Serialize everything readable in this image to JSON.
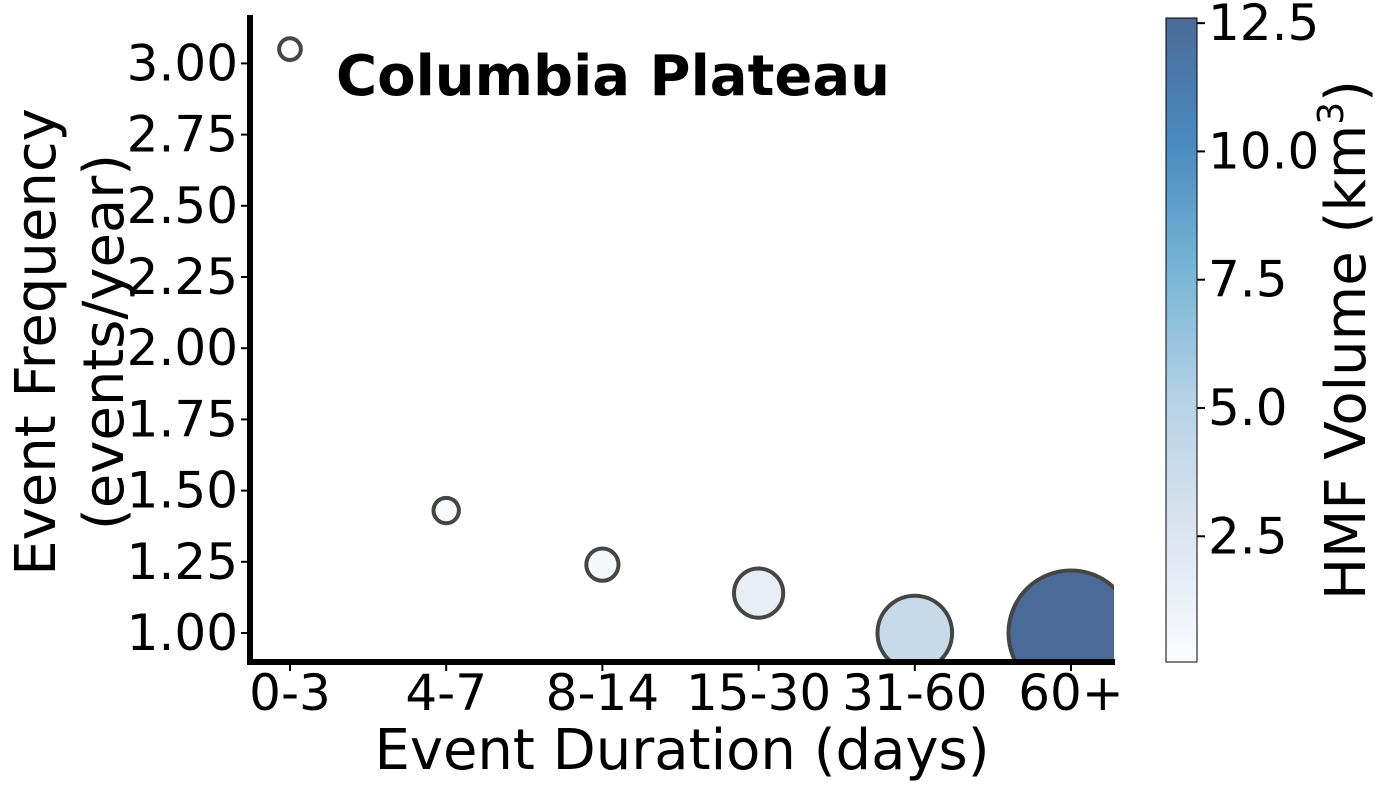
{
  "chart_data": {
    "type": "scatter",
    "title": "Columbia Plateau",
    "xlabel": "Event Duration (days)",
    "ylabel_line1": "Event Frequency",
    "ylabel_line2": "(events/year)",
    "categories": [
      "0-3",
      "4-7",
      "8-14",
      "15-30",
      "31-60",
      "60+"
    ],
    "frequency": [
      3.05,
      1.43,
      1.24,
      1.14,
      1.0,
      1.0
    ],
    "hmf_volume": [
      0.15,
      0.25,
      0.5,
      1.5,
      4.0,
      12.5
    ],
    "ylim": [
      0.9,
      3.15
    ],
    "yticks": [
      "1.00",
      "1.25",
      "1.50",
      "1.75",
      "2.00",
      "2.25",
      "2.50",
      "2.75",
      "3.00"
    ],
    "colorbar": {
      "label_main": "HMF Volume (km",
      "label_sup": "3",
      "label_close": ")",
      "min": 0.05,
      "max": 12.6,
      "ticks": [
        "2.5",
        "5.0",
        "7.5",
        "10.0",
        "12.5"
      ],
      "colormap": "Blues",
      "alpha": 0.7
    },
    "grid": false
  }
}
